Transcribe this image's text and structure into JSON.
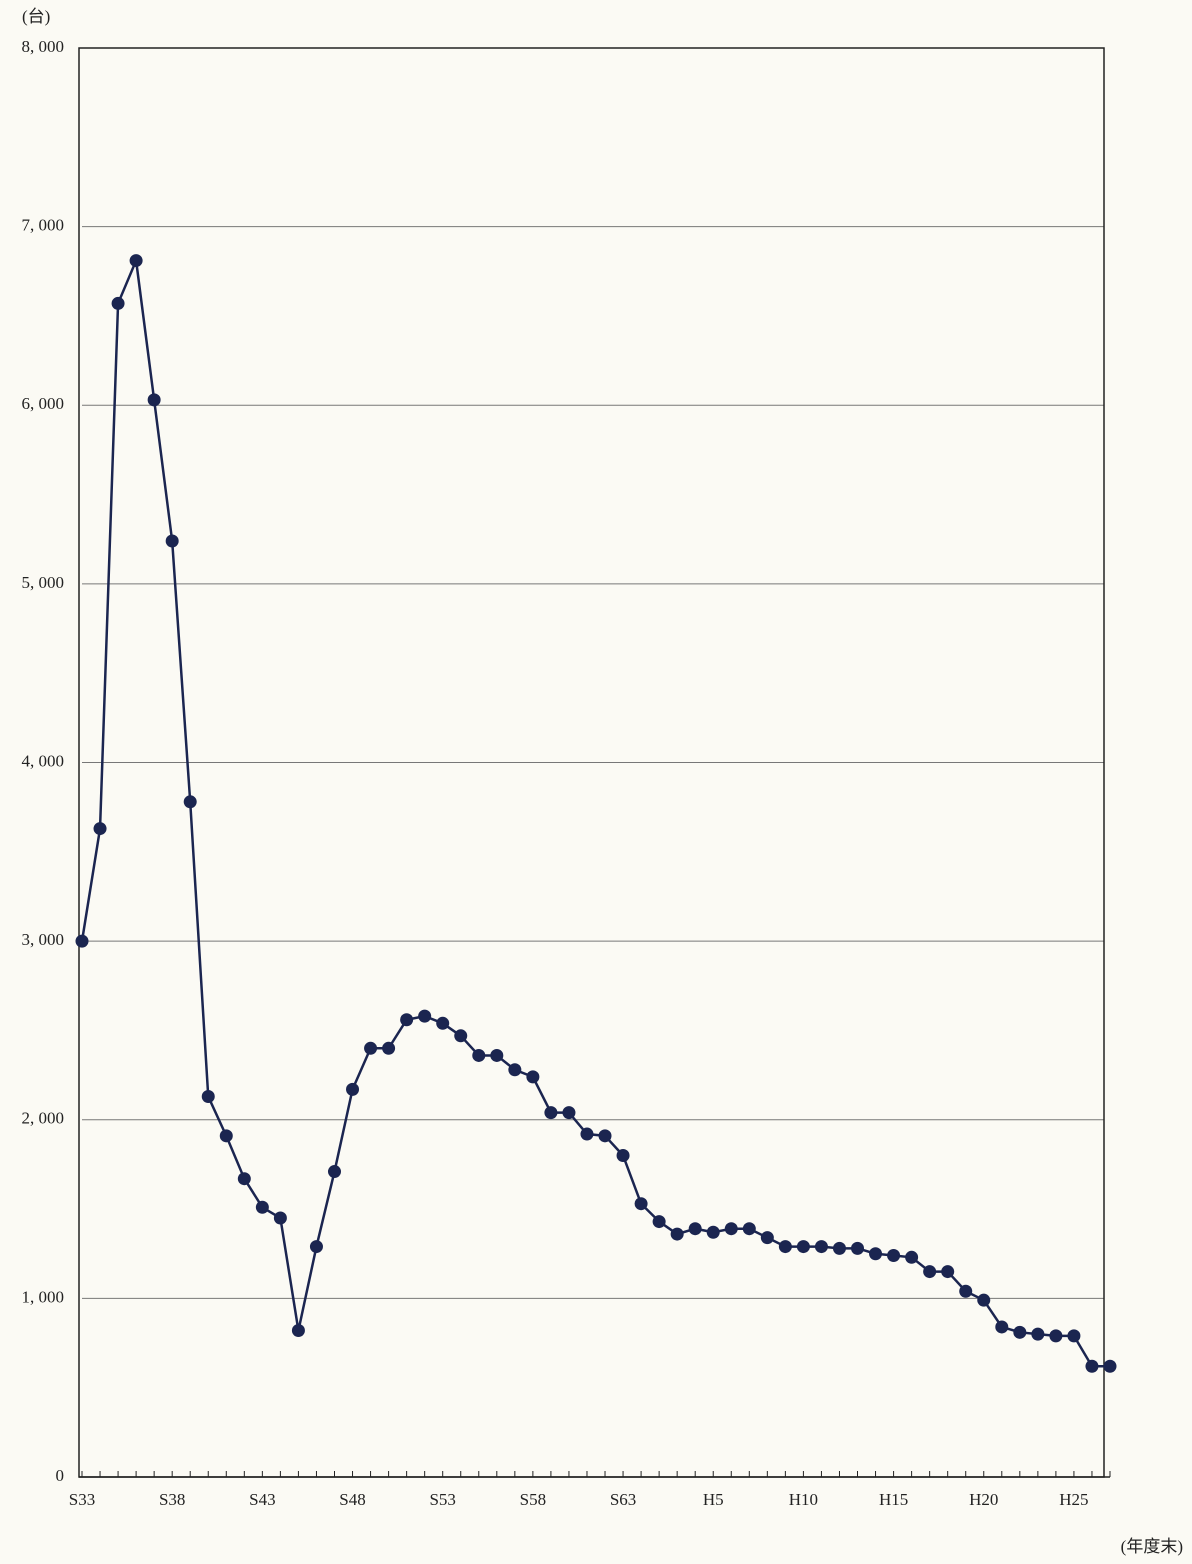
{
  "chart_data": {
    "type": "line",
    "y_unit_label": "(台)",
    "x_unit_label": "(年度末)",
    "categories": [
      "S33",
      null,
      null,
      null,
      null,
      "S38",
      null,
      null,
      null,
      null,
      "S43",
      null,
      null,
      null,
      null,
      "S48",
      null,
      null,
      null,
      null,
      "S53",
      null,
      null,
      null,
      null,
      "S58",
      null,
      null,
      null,
      null,
      "S63",
      null,
      null,
      null,
      null,
      "H5",
      null,
      null,
      null,
      null,
      "H10",
      null,
      null,
      null,
      null,
      "H15",
      null,
      null,
      null,
      null,
      "H20",
      null,
      null,
      null,
      null,
      "H25",
      null,
      null
    ],
    "series": [
      {
        "color": "#1b2550",
        "values": [
          3000,
          3630,
          6570,
          6810,
          6030,
          5240,
          3780,
          2130,
          1910,
          1670,
          1510,
          1450,
          820,
          1290,
          1710,
          2170,
          2400,
          2400,
          2560,
          2580,
          2540,
          2470,
          2360,
          2360,
          2280,
          2240,
          2040,
          2040,
          1920,
          1910,
          1800,
          1530,
          1430,
          1360,
          1390,
          1370,
          1390,
          1390,
          1340,
          1290,
          1290,
          1290,
          1280,
          1280,
          1250,
          1240,
          1230,
          1150,
          1150,
          1040,
          990,
          840,
          810,
          800,
          790,
          790,
          620,
          620
        ]
      }
    ],
    "ylim": [
      0,
      8000
    ],
    "yticks": [
      0,
      {
        "value": 1000,
        "label": "1, 000"
      },
      {
        "value": 2000,
        "label": "2, 000"
      },
      {
        "value": 3000,
        "label": "3, 000"
      },
      {
        "value": 4000,
        "label": "4, 000"
      },
      {
        "value": 5000,
        "label": "5, 000"
      },
      {
        "value": 6000,
        "label": "6, 000"
      },
      {
        "value": 7000,
        "label": "7, 000"
      },
      {
        "value": 8000,
        "label": "8, 000"
      }
    ],
    "grid": true
  }
}
